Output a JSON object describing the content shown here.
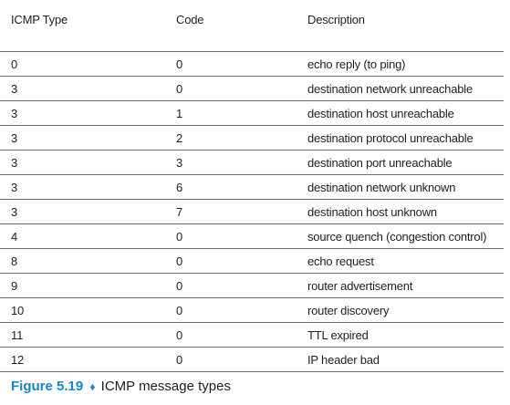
{
  "table": {
    "headers": [
      "ICMP Type",
      "Code",
      "Description"
    ],
    "rows": [
      [
        "0",
        "0",
        "echo reply (to ping)"
      ],
      [
        "3",
        "0",
        "destination network unreachable"
      ],
      [
        "3",
        "1",
        "destination host unreachable"
      ],
      [
        "3",
        "2",
        "destination protocol unreachable"
      ],
      [
        "3",
        "3",
        "destination port unreachable"
      ],
      [
        "3",
        "6",
        "destination network unknown"
      ],
      [
        "3",
        "7",
        "destination host unknown"
      ],
      [
        "4",
        "0",
        "source quench (congestion control)"
      ],
      [
        "8",
        "0",
        "echo request"
      ],
      [
        "9",
        "0",
        "router advertisement"
      ],
      [
        "10",
        "0",
        "router discovery"
      ],
      [
        "11",
        "0",
        "TTL expired"
      ],
      [
        "12",
        "0",
        "IP header bad"
      ]
    ]
  },
  "caption": {
    "figure_number": "Figure 5.19",
    "separator": "♦",
    "title": "ICMP message types"
  }
}
